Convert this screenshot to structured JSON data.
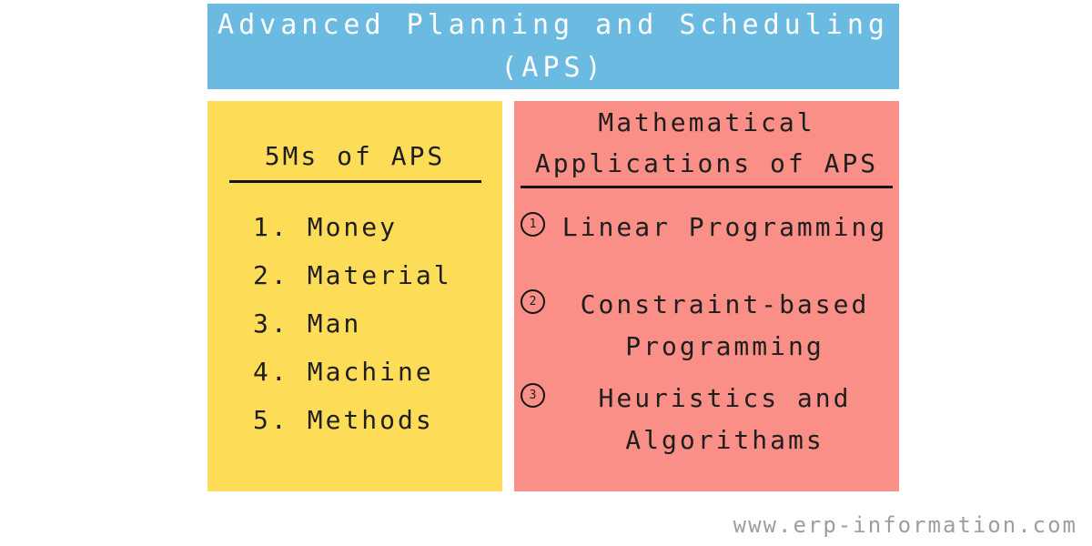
{
  "header": {
    "title_line1": "Advanced Planning and Scheduling",
    "title_line2": "(APS)"
  },
  "left_panel": {
    "heading": "5Ms of APS",
    "items": [
      {
        "num": "1.",
        "label": "Money"
      },
      {
        "num": "2.",
        "label": "Material"
      },
      {
        "num": "3.",
        "label": "Man"
      },
      {
        "num": "4.",
        "label": "Machine"
      },
      {
        "num": "5.",
        "label": "Methods"
      }
    ]
  },
  "right_panel": {
    "heading_line1": "Mathematical",
    "heading_line2": "Applications of APS",
    "items": [
      {
        "num": "1",
        "line1": "Linear Programming",
        "line2": ""
      },
      {
        "num": "2",
        "line1": "Constraint-based",
        "line2": "Programming"
      },
      {
        "num": "3",
        "line1": "Heuristics and",
        "line2": "Algorithams"
      }
    ]
  },
  "footer": {
    "watermark": "www.erp-information.com"
  },
  "colors": {
    "header_bg": "#6BBAE2",
    "header_text": "#FFFFFF",
    "left_panel_bg": "#FDDC58",
    "right_panel_bg": "#F98F86",
    "text": "#1E1E1E",
    "rule": "#141414",
    "watermark_text": "#9E9E9E"
  }
}
